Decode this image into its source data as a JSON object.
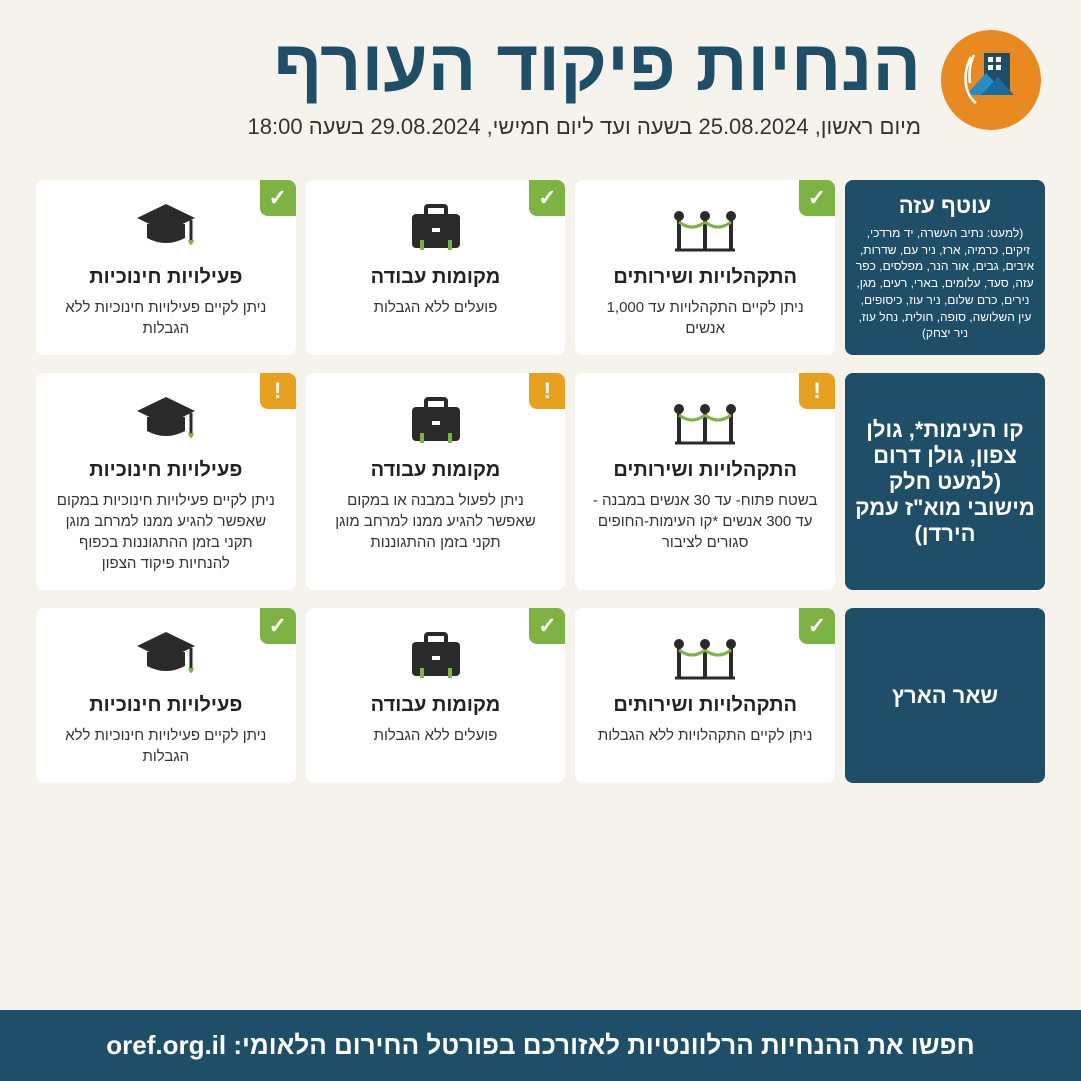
{
  "colors": {
    "background": "#f5f3ec",
    "primary": "#1f4e68",
    "logo_bg": "#e88a1f",
    "badge_green": "#7cb342",
    "badge_orange": "#e8a01f",
    "card_bg": "#ffffff",
    "icon_dark": "#2a2a2a",
    "icon_accent": "#7cb342"
  },
  "header": {
    "title": "הנחיות פיקוד העורף",
    "subtitle": "מיום ראשון, 25.08.2024 בשעה  ועד ליום חמישי, 29.08.2024 בשעה 18:00"
  },
  "rows": [
    {
      "region_title": "עוטף עזה",
      "region_detail": "(למעט: נתיב העשרה, יד מרדכי, זיקים, כרמיה, ארז, ניר עם, שדרות, איבים, גבים, אור הנר, מפלסים, כפר עזה, סעד, עלומים, בארי, רעים, מגן, נירים, כרם שלום, ניר עוז, כיסופים, עין השלושה, סופה, חולית, נחל עוז, ניר יצחק)",
      "badge": "green",
      "cards": [
        {
          "icon": "gathering",
          "title": "התקהלויות ושירותים",
          "desc": "ניתן לקיים התקהלויות עד 1,000 אנשים"
        },
        {
          "icon": "work",
          "title": "מקומות עבודה",
          "desc": "פועלים ללא הגבלות"
        },
        {
          "icon": "education",
          "title": "פעילויות חינוכיות",
          "desc": "ניתן לקיים פעילויות חינוכיות ללא הגבלות"
        }
      ]
    },
    {
      "region_title": "קו העימות*, גולן צפון, גולן דרום (למעט חלק מישובי מוא\"ז עמק הירדן)",
      "region_detail": "",
      "badge": "orange",
      "cards": [
        {
          "icon": "gathering",
          "title": "התקהלויות ושירותים",
          "desc": "בשטח פתוח- עד 30 אנשים במבנה -עד 300 אנשים *קו העימות-החופים סגורים לציבור"
        },
        {
          "icon": "work",
          "title": "מקומות עבודה",
          "desc": "ניתן לפעול במבנה או במקום שאפשר להגיע ממנו למרחב מוגן תקני בזמן ההתגוננות"
        },
        {
          "icon": "education",
          "title": "פעילויות חינוכיות",
          "desc": "ניתן לקיים פעילויות חינוכיות במקום שאפשר להגיע ממנו למרחב מוגן תקני בזמן ההתגוננות בכפוף להנחיות פיקוד הצפון"
        }
      ]
    },
    {
      "region_title": "שאר הארץ",
      "region_detail": "",
      "badge": "green",
      "cards": [
        {
          "icon": "gathering",
          "title": "התקהלויות ושירותים",
          "desc": "ניתן לקיים התקהלויות ללא הגבלות"
        },
        {
          "icon": "work",
          "title": "מקומות עבודה",
          "desc": "פועלים ללא הגבלות"
        },
        {
          "icon": "education",
          "title": "פעילויות חינוכיות",
          "desc": "ניתן לקיים פעילויות חינוכיות ללא הגבלות"
        }
      ]
    }
  ],
  "footer": {
    "text": "חפשו את ההנחיות הרלוונטיות לאזורכם בפורטל החירום הלאומי:",
    "url": "oref.org.il"
  },
  "badge_symbols": {
    "green": "✓",
    "orange": "!"
  }
}
